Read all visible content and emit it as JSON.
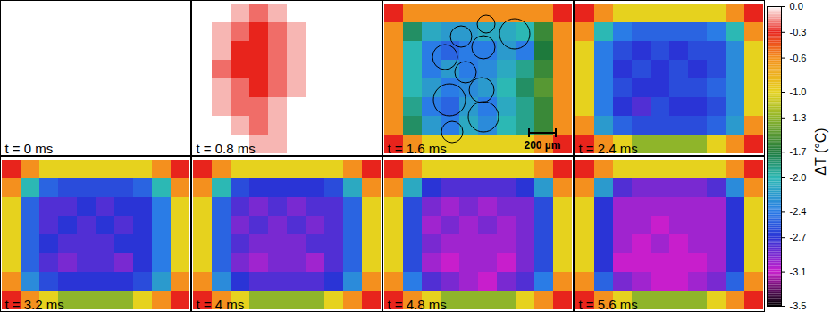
{
  "chart_data": {
    "type": "heatmap",
    "panels": [
      {
        "label": "t = 0 ms",
        "cells": [
          [
            0,
            0,
            0,
            0,
            0,
            0,
            0,
            0,
            0,
            0
          ],
          [
            0,
            0,
            0,
            0,
            0,
            0,
            0,
            0,
            0,
            0
          ],
          [
            0,
            0,
            0,
            0,
            0,
            0,
            0,
            0,
            0,
            0
          ],
          [
            0,
            0,
            0,
            0,
            0,
            0,
            0,
            0,
            0,
            0
          ],
          [
            0,
            0,
            0,
            0,
            0,
            0,
            0,
            0,
            0,
            0
          ],
          [
            0,
            0,
            0,
            0,
            0,
            0,
            0,
            0,
            0,
            0
          ],
          [
            0,
            0,
            0,
            0,
            0,
            0,
            0,
            0,
            0,
            0
          ],
          [
            0,
            0,
            0,
            0,
            0,
            0,
            0,
            0,
            0,
            0
          ]
        ]
      },
      {
        "label": "t = 0.8 ms",
        "cells": [
          [
            0,
            0,
            -0.1,
            -0.2,
            -0.1,
            0,
            0,
            0,
            0,
            0
          ],
          [
            0,
            -0.1,
            -0.2,
            -0.3,
            -0.2,
            -0.1,
            0,
            0,
            0,
            0
          ],
          [
            0,
            -0.1,
            -0.3,
            -0.3,
            -0.2,
            -0.1,
            0,
            0,
            0,
            0
          ],
          [
            0,
            -0.2,
            -0.3,
            -0.3,
            -0.2,
            -0.1,
            0,
            0,
            0,
            0
          ],
          [
            0,
            -0.1,
            -0.2,
            -0.3,
            -0.2,
            -0.1,
            0,
            0,
            0,
            0
          ],
          [
            0,
            -0.1,
            -0.2,
            -0.2,
            -0.1,
            0,
            0,
            0,
            0,
            0
          ],
          [
            0,
            0,
            -0.1,
            -0.2,
            -0.1,
            0,
            0,
            0,
            0,
            0
          ],
          [
            0,
            0,
            0,
            -0.1,
            -0.1,
            0,
            0,
            0,
            0,
            0
          ]
        ]
      },
      {
        "label": "t = 1.6 ms",
        "scale_bar": "200 µm",
        "cells": [
          [
            -0.3,
            -0.6,
            -0.6,
            -0.6,
            -0.6,
            -0.6,
            -0.6,
            -0.6,
            -0.6,
            -0.3
          ],
          [
            -0.6,
            -1.8,
            -2.1,
            -2.2,
            -2.2,
            -2.1,
            -2.1,
            -2.0,
            -1.6,
            -0.6
          ],
          [
            -0.6,
            -2.0,
            -2.4,
            -2.5,
            -2.4,
            -2.4,
            -2.2,
            -2.4,
            -1.7,
            -0.6
          ],
          [
            -0.6,
            -2.0,
            -2.4,
            -2.2,
            -2.4,
            -2.3,
            -2.1,
            -1.9,
            -1.6,
            -0.6
          ],
          [
            -0.6,
            -2.0,
            -2.2,
            -2.4,
            -2.3,
            -2.2,
            -2.0,
            -1.8,
            -1.5,
            -0.6
          ],
          [
            -0.6,
            -1.9,
            -2.4,
            -2.5,
            -2.2,
            -2.4,
            -2.1,
            -1.9,
            -1.6,
            -0.6
          ],
          [
            -0.6,
            -1.8,
            -2.2,
            -2.4,
            -2.1,
            -2.3,
            -2.0,
            -1.9,
            -1.6,
            -0.6
          ],
          [
            -0.3,
            -0.6,
            -1.0,
            -1.0,
            -1.0,
            -1.0,
            -1.0,
            -1.0,
            -0.6,
            -0.3
          ]
        ]
      },
      {
        "label": "t = 2.4 ms",
        "cells": [
          [
            -0.3,
            -0.6,
            -1.0,
            -1.0,
            -1.0,
            -1.0,
            -1.0,
            -1.0,
            -0.6,
            -0.3
          ],
          [
            -0.6,
            -2.0,
            -2.4,
            -2.5,
            -2.5,
            -2.5,
            -2.5,
            -2.4,
            -2.0,
            -0.6
          ],
          [
            -1.0,
            -2.4,
            -2.6,
            -2.7,
            -2.6,
            -2.7,
            -2.6,
            -2.6,
            -2.3,
            -1.0
          ],
          [
            -1.0,
            -2.4,
            -2.7,
            -2.6,
            -2.7,
            -2.6,
            -2.7,
            -2.6,
            -2.3,
            -1.0
          ],
          [
            -1.0,
            -2.4,
            -2.6,
            -2.7,
            -2.7,
            -2.6,
            -2.6,
            -2.5,
            -2.3,
            -1.0
          ],
          [
            -1.0,
            -2.4,
            -2.7,
            -2.8,
            -2.6,
            -2.7,
            -2.7,
            -2.6,
            -2.3,
            -1.0
          ],
          [
            -0.6,
            -2.2,
            -2.5,
            -2.6,
            -2.6,
            -2.6,
            -2.6,
            -2.5,
            -2.2,
            -0.6
          ],
          [
            -0.3,
            -0.6,
            -1.0,
            -1.3,
            -1.3,
            -1.3,
            -1.3,
            -1.0,
            -0.6,
            -0.3
          ]
        ]
      },
      {
        "label": "t = 3.2 ms",
        "cells": [
          [
            -0.3,
            -0.6,
            -1.0,
            -1.0,
            -1.0,
            -1.0,
            -1.0,
            -1.0,
            -0.6,
            -0.3
          ],
          [
            -0.6,
            -2.0,
            -2.5,
            -2.6,
            -2.6,
            -2.6,
            -2.6,
            -2.5,
            -2.0,
            -0.6
          ],
          [
            -1.0,
            -2.5,
            -2.8,
            -2.8,
            -2.7,
            -2.8,
            -2.7,
            -2.7,
            -2.4,
            -1.0
          ],
          [
            -1.0,
            -2.5,
            -2.8,
            -2.7,
            -2.8,
            -2.7,
            -2.8,
            -2.7,
            -2.4,
            -1.0
          ],
          [
            -1.0,
            -2.5,
            -2.7,
            -2.8,
            -2.8,
            -2.8,
            -2.7,
            -2.7,
            -2.4,
            -1.0
          ],
          [
            -1.0,
            -2.5,
            -2.8,
            -2.9,
            -2.8,
            -2.8,
            -2.9,
            -2.7,
            -2.4,
            -1.0
          ],
          [
            -0.6,
            -2.3,
            -2.6,
            -2.7,
            -2.7,
            -2.7,
            -2.7,
            -2.6,
            -2.2,
            -0.6
          ],
          [
            -0.3,
            -0.6,
            -1.0,
            -1.3,
            -1.3,
            -1.3,
            -1.3,
            -1.0,
            -0.6,
            -0.3
          ]
        ]
      },
      {
        "label": "t = 4 ms",
        "cells": [
          [
            -0.3,
            -0.6,
            -1.0,
            -1.0,
            -1.0,
            -1.0,
            -1.0,
            -1.0,
            -0.6,
            -0.3
          ],
          [
            -0.6,
            -2.0,
            -2.6,
            -2.7,
            -2.7,
            -2.7,
            -2.7,
            -2.6,
            -2.1,
            -0.6
          ],
          [
            -1.0,
            -2.5,
            -2.8,
            -2.9,
            -2.8,
            -2.9,
            -2.8,
            -2.8,
            -2.5,
            -1.0
          ],
          [
            -1.0,
            -2.5,
            -2.9,
            -2.8,
            -2.9,
            -2.8,
            -2.9,
            -2.8,
            -2.5,
            -1.0
          ],
          [
            -1.0,
            -2.5,
            -2.8,
            -2.9,
            -2.9,
            -2.9,
            -2.8,
            -2.8,
            -2.5,
            -1.0
          ],
          [
            -1.0,
            -2.5,
            -2.9,
            -3.0,
            -2.9,
            -2.9,
            -3.0,
            -2.8,
            -2.5,
            -1.0
          ],
          [
            -0.6,
            -2.3,
            -2.7,
            -2.8,
            -2.8,
            -2.8,
            -2.8,
            -2.7,
            -2.3,
            -0.6
          ],
          [
            -0.3,
            -0.6,
            -1.0,
            -1.3,
            -1.3,
            -1.3,
            -1.3,
            -1.0,
            -0.6,
            -0.3
          ]
        ]
      },
      {
        "label": "t = 4.8 ms",
        "cells": [
          [
            -0.3,
            -0.6,
            -1.0,
            -1.0,
            -1.0,
            -1.0,
            -1.0,
            -1.0,
            -0.6,
            -0.3
          ],
          [
            -0.6,
            -2.1,
            -2.7,
            -2.8,
            -2.8,
            -2.8,
            -2.8,
            -2.7,
            -2.2,
            -0.6
          ],
          [
            -1.0,
            -2.6,
            -2.9,
            -3.0,
            -2.9,
            -3.0,
            -2.9,
            -2.9,
            -2.6,
            -1.0
          ],
          [
            -1.0,
            -2.6,
            -3.0,
            -2.9,
            -3.0,
            -2.9,
            -3.0,
            -2.9,
            -2.6,
            -1.0
          ],
          [
            -1.0,
            -2.6,
            -2.9,
            -3.0,
            -3.0,
            -3.0,
            -3.0,
            -2.9,
            -2.6,
            -1.0
          ],
          [
            -1.0,
            -2.6,
            -3.0,
            -3.1,
            -3.0,
            -3.0,
            -3.1,
            -2.9,
            -2.6,
            -1.0
          ],
          [
            -0.6,
            -2.4,
            -2.8,
            -2.9,
            -3.0,
            -3.1,
            -2.9,
            -2.8,
            -2.4,
            -0.6
          ],
          [
            -0.3,
            -0.6,
            -1.0,
            -1.3,
            -1.3,
            -1.3,
            -1.3,
            -1.0,
            -0.6,
            -0.3
          ]
        ]
      },
      {
        "label": "t = 5.6 ms",
        "cells": [
          [
            -0.3,
            -0.6,
            -1.0,
            -1.0,
            -1.0,
            -1.0,
            -1.0,
            -1.0,
            -0.6,
            -0.3
          ],
          [
            -0.6,
            -2.2,
            -2.8,
            -2.9,
            -2.9,
            -2.9,
            -2.9,
            -2.8,
            -2.3,
            -0.6
          ],
          [
            -1.0,
            -2.7,
            -3.0,
            -3.0,
            -3.0,
            -3.0,
            -3.0,
            -3.0,
            -2.7,
            -1.0
          ],
          [
            -1.0,
            -2.7,
            -3.0,
            -3.0,
            -3.1,
            -3.0,
            -3.0,
            -3.0,
            -2.7,
            -1.0
          ],
          [
            -1.0,
            -2.7,
            -3.0,
            -3.1,
            -3.0,
            -3.1,
            -3.0,
            -3.0,
            -2.7,
            -1.0
          ],
          [
            -1.0,
            -2.7,
            -3.1,
            -3.1,
            -3.1,
            -3.1,
            -3.1,
            -3.0,
            -2.7,
            -1.0
          ],
          [
            -0.6,
            -2.5,
            -2.9,
            -3.0,
            -3.1,
            -3.1,
            -3.0,
            -2.9,
            -2.5,
            -0.6
          ],
          [
            -0.3,
            -0.6,
            -1.0,
            -1.3,
            -1.3,
            -1.3,
            -1.3,
            -1.0,
            -0.6,
            -0.3
          ]
        ]
      }
    ],
    "colorbar": {
      "title": "ΔT (°C)",
      "range": [
        -3.5,
        0
      ],
      "ticks": [
        {
          "value": 0,
          "label": "0.0"
        },
        -0.3,
        -0.6,
        {
          "value": -1,
          "label": "-1.0"
        },
        -1.3,
        -1.7,
        {
          "value": -2,
          "label": "-2.0"
        },
        -2.4,
        -2.7,
        -3.1,
        -3.5
      ]
    }
  }
}
